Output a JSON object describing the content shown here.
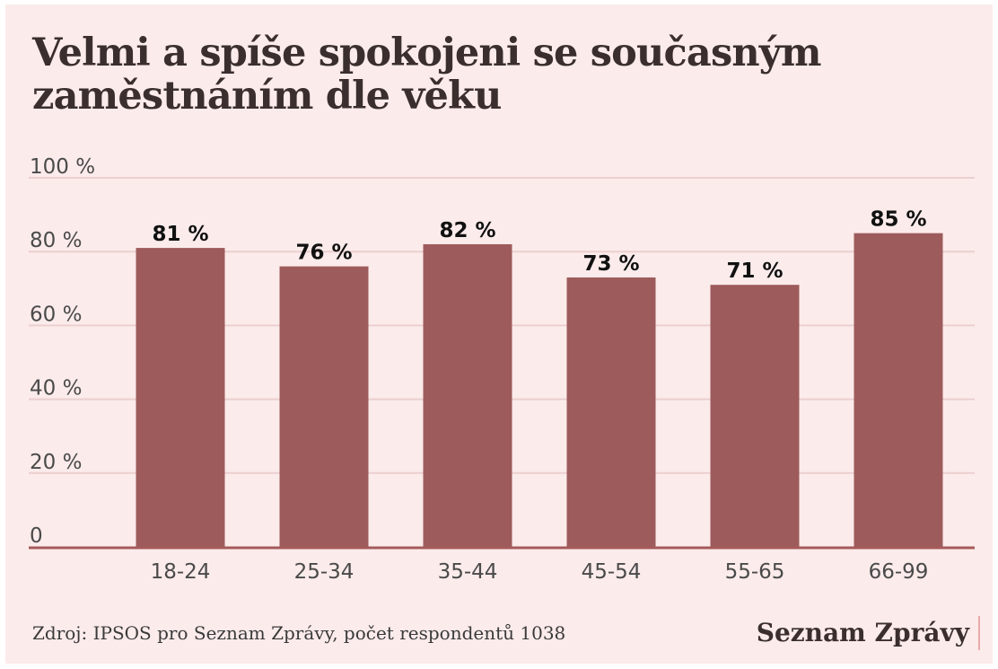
{
  "title": "Velmi a spíše spokojeni se současným zaměstnáním dle věku",
  "source": "Zdroj: IPSOS pro Seznam Zprávy, počet respondentů 1038",
  "brand": "Seznam Zprávy",
  "colors": {
    "background": "#fcebeb",
    "bar": "#9e5b5b",
    "grid": "#ebcfcf",
    "baseline": "#a55a5a"
  },
  "chart_data": {
    "type": "bar",
    "title": "Velmi a spíše spokojeni se současným zaměstnáním dle věku",
    "xlabel": "",
    "ylabel": "",
    "categories": [
      "18-24",
      "25-34",
      "35-44",
      "45-54",
      "55-65",
      "66-99"
    ],
    "values": [
      81,
      76,
      82,
      73,
      71,
      85
    ],
    "data_labels": [
      "81 %",
      "76 %",
      "82 %",
      "73 %",
      "71 %",
      "85 %"
    ],
    "y_ticks": [
      0,
      20,
      40,
      60,
      80,
      100
    ],
    "y_tick_labels": [
      "0",
      "20 %",
      "40 %",
      "60 %",
      "80 %",
      "100 %"
    ],
    "ylim": [
      0,
      100
    ],
    "grid": true,
    "legend": "none"
  }
}
